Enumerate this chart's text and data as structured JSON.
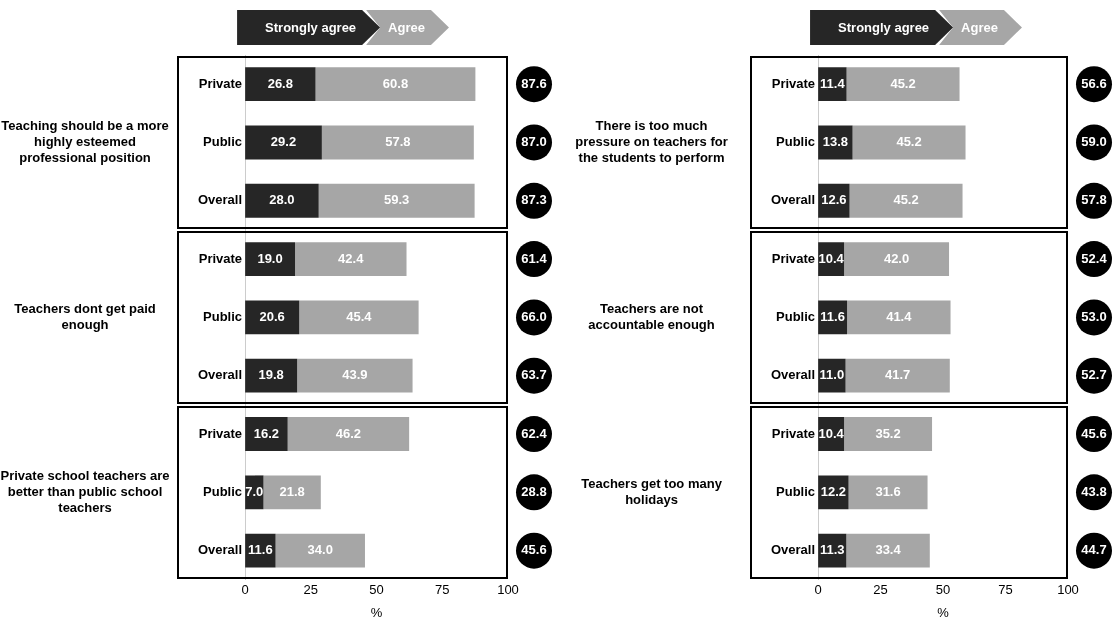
{
  "chart_data": [
    {
      "type": "bar",
      "orientation": "horizontal",
      "stacked": true,
      "legend": "top",
      "xlabel": "%",
      "xlim": [
        0,
        100
      ],
      "xticks": [
        0,
        25,
        50,
        75,
        100
      ],
      "categories": [
        "Private",
        "Public",
        "Overall",
        "Private",
        "Public",
        "Overall",
        "Private",
        "Public",
        "Overall"
      ],
      "series": [
        {
          "name": "Strongly agree",
          "color": "#262626",
          "values": [
            26.8,
            29.2,
            28.0,
            19.0,
            20.6,
            19.8,
            16.2,
            7.0,
            11.6
          ],
          "value_labels": [
            "26.8",
            "29.2",
            "28.0",
            "19.0",
            "20.6",
            "19.8",
            "16.2",
            "7.0",
            "11.6"
          ]
        },
        {
          "name": "Agree",
          "color": "#a6a6a6",
          "values": [
            60.8,
            57.8,
            59.3,
            42.4,
            45.4,
            43.9,
            46.2,
            21.8,
            34.0
          ],
          "value_labels": [
            "60.8",
            "57.8",
            "59.3",
            "42.4",
            "45.4",
            "43.9",
            "46.2",
            "21.8",
            "34.0"
          ]
        }
      ],
      "annotations": [
        "Teaching should be a more highly esteemed professional position",
        "Teachers dont get paid enough",
        "Private school teachers are better than public school teachers",
        "87.6",
        "87.0",
        "87.3",
        "61.4",
        "66.0",
        "63.7",
        "62.4",
        "28.8",
        "45.6"
      ]
    },
    {
      "type": "bar",
      "orientation": "horizontal",
      "stacked": true,
      "legend": "top",
      "xlabel": "%",
      "xlim": [
        0,
        100
      ],
      "xticks": [
        0,
        25,
        50,
        75,
        100
      ],
      "categories": [
        "Private",
        "Public",
        "Overall",
        "Private",
        "Public",
        "Overall",
        "Private",
        "Public",
        "Overall"
      ],
      "series": [
        {
          "name": "Strongly agree",
          "color": "#262626",
          "values": [
            11.4,
            13.8,
            12.6,
            10.4,
            11.6,
            11.0,
            10.4,
            12.2,
            11.3
          ],
          "value_labels": [
            "11.4",
            "13.8",
            "12.6",
            "10.4",
            "11.6",
            "11.0",
            "10.4",
            "12.2",
            "11.3"
          ]
        },
        {
          "name": "Agree",
          "color": "#a6a6a6",
          "values": [
            45.2,
            45.2,
            45.2,
            42.0,
            41.4,
            41.7,
            35.2,
            31.6,
            33.4
          ],
          "value_labels": [
            "45.2",
            "45.2",
            "45.2",
            "42.0",
            "41.4",
            "41.7",
            "35.2",
            "31.6",
            "33.4"
          ]
        }
      ],
      "annotations": [
        "There is too much pressure on teachers for the students to perform",
        "Teachers are not accountable enough",
        "Teachers get too many holidays",
        "56.6",
        "59.0",
        "57.8",
        "52.4",
        "53.0",
        "52.7",
        "45.6",
        "43.8",
        "44.7"
      ]
    }
  ]
}
